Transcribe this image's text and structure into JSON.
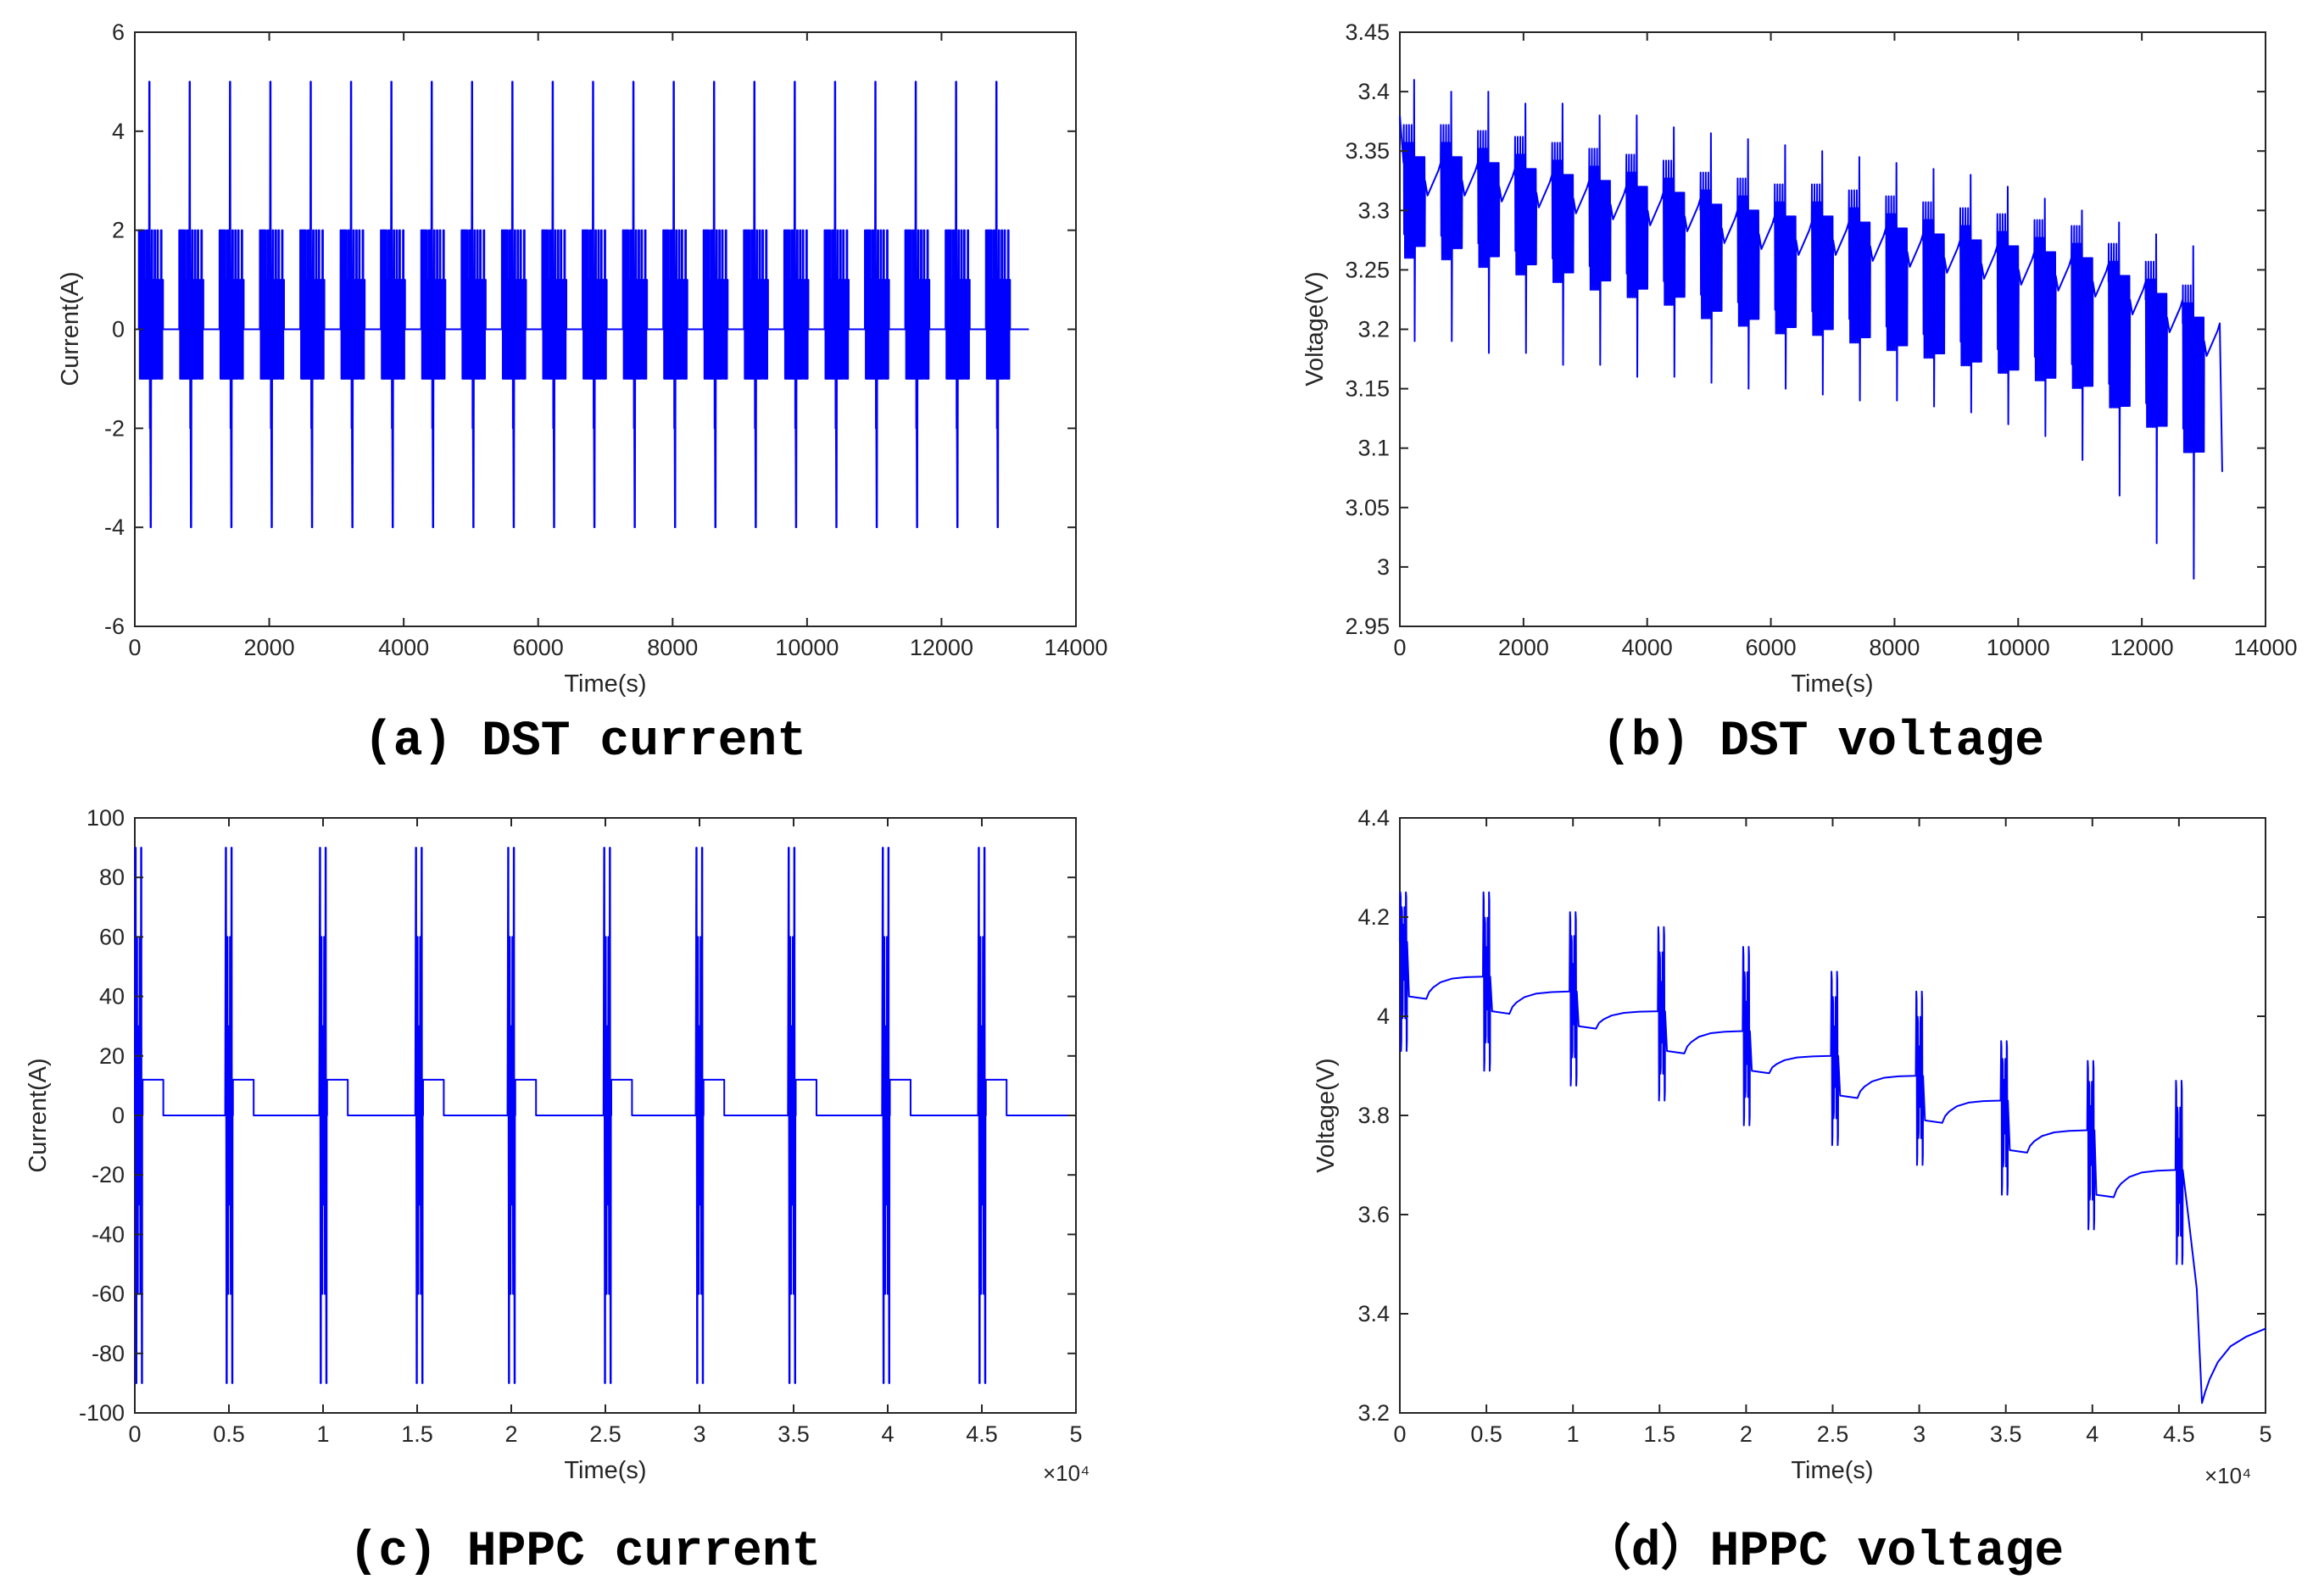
{
  "colors": {
    "series": "#0000ff",
    "axis": "#262626",
    "caption": "#000000"
  },
  "chart_data": [
    {
      "id": "a",
      "type": "line",
      "caption": "(a) DST current",
      "xlabel": "Time(s)",
      "ylabel": "Current(A)",
      "xlim": [
        0,
        14000
      ],
      "ylim": [
        -6,
        6
      ],
      "xticks": [
        0,
        2000,
        4000,
        6000,
        8000,
        10000,
        12000,
        14000
      ],
      "yticks": [
        -6,
        -4,
        -2,
        0,
        2,
        4,
        6
      ],
      "xtick_labels": [
        "0",
        "2000",
        "4000",
        "6000",
        "8000",
        "10000",
        "12000",
        "14000"
      ],
      "ytick_labels": [
        "-6",
        "-4",
        "-2",
        "0",
        "2",
        "4",
        "6"
      ],
      "exponent_label": "",
      "grid": false,
      "profile": {
        "kind": "dst_current",
        "cycles": 22,
        "cycle_period_s": 600,
        "first_cycle_start_s": 60,
        "rest_level_A": 0,
        "active_span_s": 360,
        "end_s": 13300,
        "step_levels_A": [
          0,
          2,
          -1,
          1,
          -1,
          2,
          -1,
          1,
          -1,
          2,
          -1,
          1,
          -1,
          0
        ],
        "pulse_levels_A": [
          5,
          -2,
          -4
        ],
        "max_A": 5,
        "min_A": -4
      }
    },
    {
      "id": "b",
      "type": "line",
      "caption": "(b) DST voltage",
      "xlabel": "Time(s)",
      "ylabel": "Voltage(V)",
      "xlim": [
        0,
        14000
      ],
      "ylim": [
        2.95,
        3.45
      ],
      "xticks": [
        0,
        2000,
        4000,
        6000,
        8000,
        10000,
        12000,
        14000
      ],
      "yticks": [
        2.95,
        3.0,
        3.05,
        3.1,
        3.15,
        3.2,
        3.25,
        3.3,
        3.35,
        3.4,
        3.45
      ],
      "xtick_labels": [
        "0",
        "2000",
        "4000",
        "6000",
        "8000",
        "10000",
        "12000",
        "14000"
      ],
      "ytick_labels": [
        "2.95",
        "3",
        "3.05",
        "3.1",
        "3.15",
        "3.2",
        "3.25",
        "3.3",
        "3.35",
        "3.4",
        "3.45"
      ],
      "exponent_label": "",
      "grid": false,
      "profile": {
        "kind": "dst_voltage",
        "cycles": 22,
        "cycle_period_s": 600,
        "first_cycle_start_s": 60,
        "end_s": 13300,
        "start_V": 3.38,
        "rest_V_per_cycle": [
          3.34,
          3.34,
          3.335,
          3.33,
          3.325,
          3.32,
          3.315,
          3.31,
          3.3,
          3.295,
          3.29,
          3.29,
          3.285,
          3.28,
          3.275,
          3.27,
          3.265,
          3.26,
          3.255,
          3.24,
          3.225,
          3.205
        ],
        "peak_V_per_cycle": [
          3.41,
          3.4,
          3.4,
          3.39,
          3.39,
          3.38,
          3.38,
          3.37,
          3.365,
          3.36,
          3.355,
          3.35,
          3.345,
          3.34,
          3.335,
          3.33,
          3.32,
          3.31,
          3.3,
          3.29,
          3.28,
          3.27
        ],
        "dip_V_per_cycle": [
          3.19,
          3.19,
          3.18,
          3.18,
          3.17,
          3.17,
          3.16,
          3.16,
          3.155,
          3.15,
          3.15,
          3.145,
          3.14,
          3.14,
          3.135,
          3.13,
          3.12,
          3.11,
          3.09,
          3.06,
          3.02,
          2.99
        ],
        "min_V": 2.99,
        "end_V": 3.08
      }
    },
    {
      "id": "c",
      "type": "line",
      "caption": "(c) HPPC current",
      "xlabel": "Time(s)",
      "ylabel": "Current(A)",
      "xlim": [
        0,
        50000
      ],
      "ylim": [
        -100,
        100
      ],
      "xticks": [
        0,
        5000,
        10000,
        15000,
        20000,
        25000,
        30000,
        35000,
        40000,
        45000,
        50000
      ],
      "yticks": [
        -100,
        -80,
        -60,
        -40,
        -20,
        0,
        20,
        40,
        60,
        80,
        100
      ],
      "xtick_labels": [
        "0",
        "0.5",
        "1",
        "1.5",
        "2",
        "2.5",
        "3",
        "3.5",
        "4",
        "4.5",
        "5"
      ],
      "ytick_labels": [
        "-100",
        "-80",
        "-60",
        "-40",
        "-20",
        "0",
        "20",
        "40",
        "60",
        "80",
        "100"
      ],
      "exponent_label": "×10⁴",
      "grid": false,
      "profile": {
        "kind": "hppc_current",
        "pulse_times_s": [
          0,
          4800,
          9800,
          14900,
          19800,
          24900,
          29800,
          34700,
          39700,
          44800
        ],
        "pulse_amplitudes_A": [
          90,
          60,
          30,
          -30,
          -60,
          -90
        ],
        "discharge_step_A": 12,
        "discharge_step_duration_s": 1100,
        "rest_level_A": 0,
        "end_s": 50000
      }
    },
    {
      "id": "d",
      "type": "line",
      "caption": "（d）HPPC voltage",
      "xlabel": "Time(s)",
      "ylabel": "Voltage(V)",
      "xlim": [
        0,
        50000
      ],
      "ylim": [
        3.2,
        4.4
      ],
      "xticks": [
        0,
        5000,
        10000,
        15000,
        20000,
        25000,
        30000,
        35000,
        40000,
        45000,
        50000
      ],
      "yticks": [
        3.2,
        3.4,
        3.6,
        3.8,
        4.0,
        4.2,
        4.4
      ],
      "xtick_labels": [
        "0",
        "0.5",
        "1",
        "1.5",
        "2",
        "2.5",
        "3",
        "3.5",
        "4",
        "4.5",
        "5"
      ],
      "ytick_labels": [
        "3.2",
        "3.4",
        "3.6",
        "3.8",
        "4",
        "4.2",
        "4.4"
      ],
      "exponent_label": "×10⁴",
      "grid": false,
      "profile": {
        "kind": "hppc_voltage",
        "pulse_times_s": [
          0,
          4800,
          9800,
          14900,
          19800,
          24900,
          29800,
          34700,
          39700,
          44800
        ],
        "rest_V_before_pulse": [
          4.15,
          4.08,
          4.05,
          4.01,
          3.97,
          3.92,
          3.88,
          3.83,
          3.77,
          3.69
        ],
        "pulse_peak_V": [
          4.25,
          4.25,
          4.21,
          4.18,
          4.14,
          4.09,
          4.05,
          3.95,
          3.91,
          3.87
        ],
        "pulse_dip_V": [
          3.93,
          3.89,
          3.86,
          3.83,
          3.78,
          3.74,
          3.7,
          3.64,
          3.57,
          3.5
        ],
        "post_step_dip_V": [
          4.04,
          4.01,
          3.98,
          3.93,
          3.89,
          3.84,
          3.79,
          3.73,
          3.64,
          3.22
        ],
        "final_V": 3.37,
        "end_s": 50000
      }
    }
  ]
}
